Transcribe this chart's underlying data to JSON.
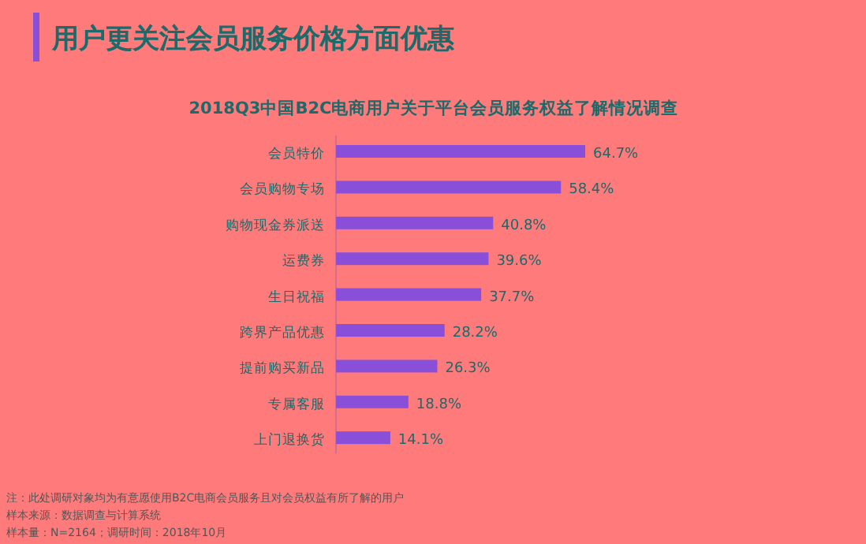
{
  "chart_data": {
    "type": "bar",
    "orientation": "horizontal",
    "title": "用户更关注会员服务价格方面优惠",
    "subtitle": "2018Q3中国B2C电商用户关于平台会员服务权益了解情况调查",
    "categories": [
      "会员特价",
      "会员购物专场",
      "购物现金券派送",
      "运费券",
      "生日祝福",
      "跨界产品优惠",
      "提前购买新品",
      "专属客服",
      "上门退换货"
    ],
    "values": [
      64.7,
      58.4,
      40.8,
      39.6,
      37.7,
      28.2,
      26.3,
      18.8,
      14.1
    ],
    "value_labels": [
      "64.7%",
      "58.4%",
      "40.8%",
      "39.6%",
      "37.7%",
      "28.2%",
      "26.3%",
      "18.8%",
      "14.1%"
    ],
    "color": "#8a4fd8",
    "annotations": [
      "注：此处调研对象均为有意愿使用B2C电商会员服务且对会员权益有所了解的用户",
      "样本来源：数据调查与计算系统",
      "样本量：N=2164；调研时间：2018年10月"
    ]
  }
}
